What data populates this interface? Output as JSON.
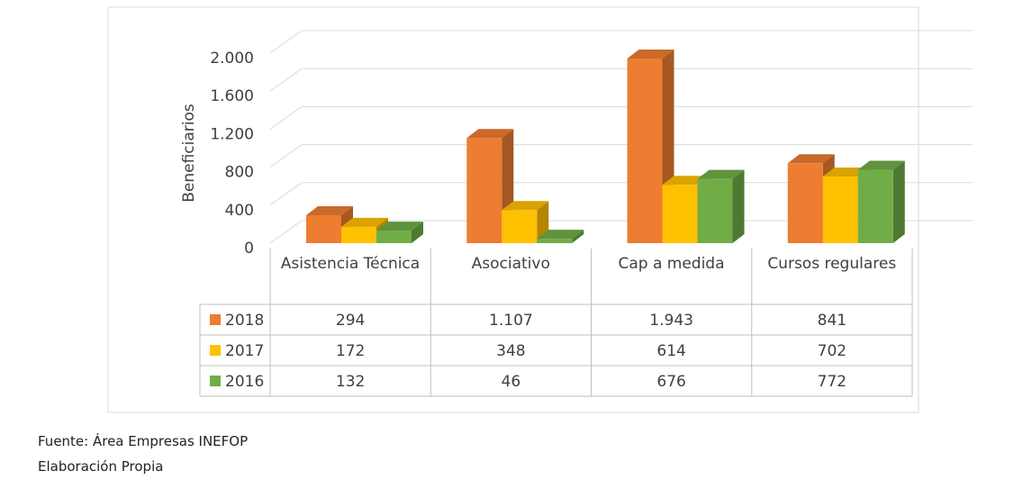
{
  "chart_data": {
    "type": "bar3d",
    "y_label": "Beneficiarios",
    "categories": [
      "Asistencia Técnica",
      "Asociativo",
      "Cap a medida",
      "Cursos regulares"
    ],
    "series": [
      {
        "name": "2018",
        "color": "#ed7d31",
        "values": [
          294,
          1107,
          1943,
          841
        ],
        "value_labels": [
          "294",
          "1.107",
          "1.943",
          "841"
        ]
      },
      {
        "name": "2017",
        "color": "#ffc000",
        "values": [
          172,
          348,
          614,
          702
        ],
        "value_labels": [
          "172",
          "348",
          "614",
          "702"
        ]
      },
      {
        "name": "2016",
        "color": "#70ad47",
        "values": [
          132,
          46,
          676,
          772
        ],
        "value_labels": [
          "132",
          "46",
          "676",
          "772"
        ]
      }
    ],
    "ylim": [
      0,
      2000
    ],
    "yticks": [
      0,
      400,
      800,
      {
        "value": 1200,
        "label": "1.200"
      },
      {
        "value": 1600,
        "label": "1.600"
      },
      {
        "value": 2000,
        "label": "2.000"
      }
    ],
    "grid": true,
    "data_table": true
  },
  "footer": {
    "source": "Fuente: Área Empresas INEFOP",
    "note": "Elaboración Propia"
  }
}
